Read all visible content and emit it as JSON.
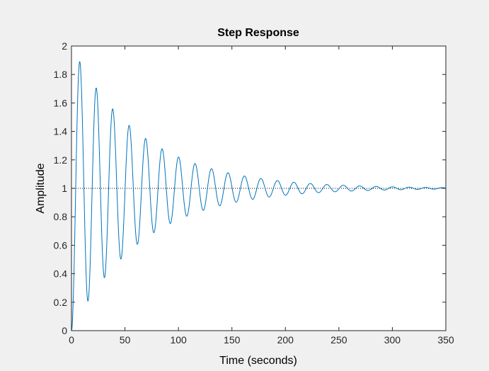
{
  "chart_data": {
    "type": "line",
    "title": "Step Response",
    "xlabel": "Time (seconds)",
    "ylabel": "Amplitude",
    "xlim": [
      0,
      350
    ],
    "ylim": [
      0,
      2
    ],
    "xticks": [
      0,
      50,
      100,
      150,
      200,
      250,
      300,
      350
    ],
    "yticks": [
      0,
      0.2,
      0.4,
      0.6,
      0.8,
      1,
      1.2,
      1.4,
      1.6,
      1.8,
      2
    ],
    "xtick_labels": [
      "0",
      "50",
      "100",
      "150",
      "200",
      "250",
      "300",
      "350"
    ],
    "ytick_labels": [
      "0",
      "0.2",
      "0.4",
      "0.6",
      "0.8",
      "1",
      "1.2",
      "1.4",
      "1.6",
      "1.8",
      "2"
    ],
    "grid": false,
    "reference_line": {
      "y": 1,
      "style": "dotted",
      "color": "#000000"
    },
    "series": [
      {
        "color": "#0072bd",
        "final_value": 1,
        "first_peak_time": 7.7,
        "first_peak_value": 1.89,
        "oscillation_period": 15.5
      }
    ]
  },
  "colors": {
    "figure_background": "#f0f0f0",
    "axes_background": "#ffffff",
    "axes_border": "#262626",
    "line": "#0072bd"
  }
}
